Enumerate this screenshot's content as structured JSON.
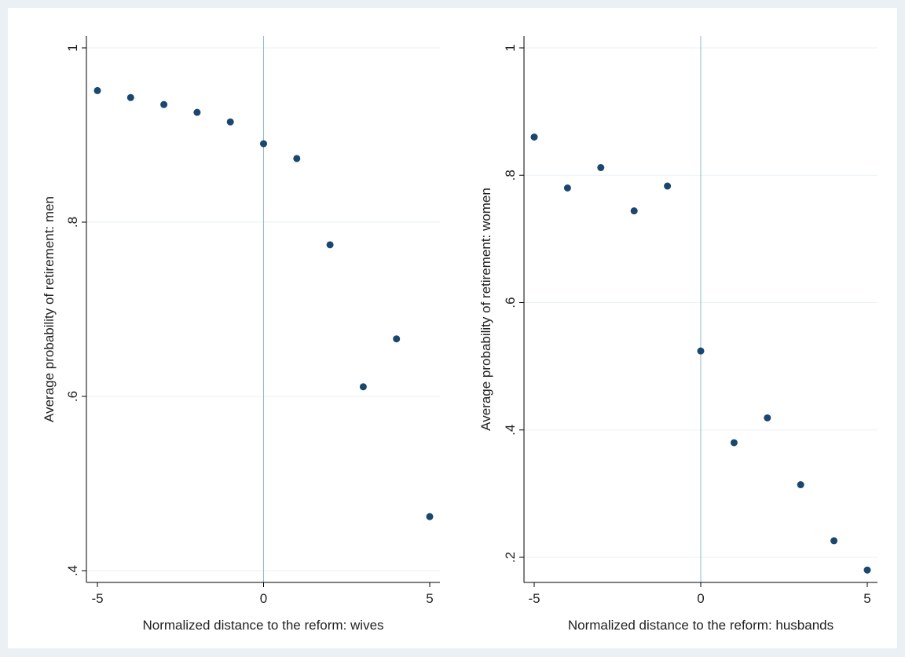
{
  "colors": {
    "background": "#eaf0f3",
    "plot_region": "#ffffff",
    "marker": "#1a476f",
    "reference_line": "#8fb9d6"
  },
  "chart_data": [
    {
      "type": "scatter",
      "title": "",
      "xlabel": "Normalized distance to the reform: wives",
      "ylabel": "Average probability of retirement: men",
      "xlim": [
        -5,
        5
      ],
      "ylim": [
        0.4,
        1
      ],
      "xticks": [
        -5,
        0,
        5
      ],
      "xtick_labels": [
        "-5",
        "0",
        "5"
      ],
      "yticks": [
        0.4,
        0.6,
        0.8,
        1
      ],
      "ytick_labels": [
        ".4",
        ".6",
        ".8",
        "1"
      ],
      "grid": "horizontal",
      "reference_line_x": 0,
      "series": [
        {
          "x": [
            -5,
            -4,
            -3,
            -2,
            -1,
            0,
            1,
            2,
            3,
            4,
            5
          ],
          "y": [
            0.951,
            0.943,
            0.935,
            0.926,
            0.915,
            0.89,
            0.873,
            0.774,
            0.611,
            0.666,
            0.462
          ]
        }
      ]
    },
    {
      "type": "scatter",
      "title": "",
      "xlabel": "Normalized distance to the reform: husbands",
      "ylabel": "Average probability of retirement: women",
      "xlim": [
        -5,
        5
      ],
      "ylim": [
        0.2,
        1
      ],
      "xticks": [
        -5,
        0,
        5
      ],
      "xtick_labels": [
        "-5",
        "0",
        "5"
      ],
      "yticks": [
        0.2,
        0.4,
        0.6,
        0.8,
        1
      ],
      "ytick_labels": [
        ".2",
        ".4",
        ".6",
        ".8",
        "1"
      ],
      "grid": "horizontal",
      "reference_line_x": 0,
      "series": [
        {
          "x": [
            -5,
            -4,
            -3,
            -2,
            -1,
            0,
            1,
            2,
            3,
            4,
            5
          ],
          "y": [
            0.86,
            0.78,
            0.812,
            0.744,
            0.783,
            0.524,
            0.38,
            0.419,
            0.314,
            0.226,
            0.18
          ]
        }
      ]
    }
  ]
}
